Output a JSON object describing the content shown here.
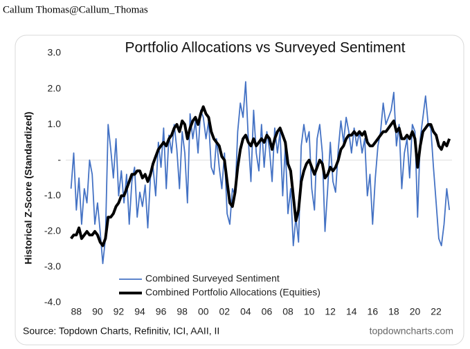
{
  "header": {
    "author": "Callum Thomas@Callum_Thomas"
  },
  "chart_data": {
    "type": "line",
    "title": "Portfolio Allocations vs Surveyed Sentiment",
    "y_label": "Historical Z-Score (Standardized)",
    "source": "Source: Topdown Charts, Refinitiv, ICI, AAII, II",
    "watermark": "topdowncharts.com",
    "x": [
      1987.5,
      1987.75,
      1988,
      1988.25,
      1988.5,
      1988.75,
      1989,
      1989.25,
      1989.5,
      1989.75,
      1990,
      1990.25,
      1990.5,
      1990.75,
      1991,
      1991.25,
      1991.5,
      1991.75,
      1992,
      1992.25,
      1992.5,
      1992.75,
      1993,
      1993.25,
      1993.5,
      1993.75,
      1994,
      1994.25,
      1994.5,
      1994.75,
      1995,
      1995.25,
      1995.5,
      1995.75,
      1996,
      1996.25,
      1996.5,
      1996.75,
      1997,
      1997.25,
      1997.5,
      1997.75,
      1998,
      1998.25,
      1998.5,
      1998.75,
      1999,
      1999.25,
      1999.5,
      1999.75,
      2000,
      2000.25,
      2000.5,
      2000.75,
      2001,
      2001.25,
      2001.5,
      2001.75,
      2002,
      2002.25,
      2002.5,
      2002.75,
      2003,
      2003.25,
      2003.5,
      2003.75,
      2004,
      2004.25,
      2004.5,
      2004.75,
      2005,
      2005.25,
      2005.5,
      2005.75,
      2006,
      2006.25,
      2006.5,
      2006.75,
      2007,
      2007.25,
      2007.5,
      2007.75,
      2008,
      2008.25,
      2008.5,
      2008.75,
      2009,
      2009.25,
      2009.5,
      2009.75,
      2010,
      2010.25,
      2010.5,
      2010.75,
      2011,
      2011.25,
      2011.5,
      2011.75,
      2012,
      2012.25,
      2012.5,
      2012.75,
      2013,
      2013.25,
      2013.5,
      2013.75,
      2014,
      2014.25,
      2014.5,
      2014.75,
      2015,
      2015.25,
      2015.5,
      2015.75,
      2016,
      2016.25,
      2016.5,
      2016.75,
      2017,
      2017.25,
      2017.5,
      2017.75,
      2018,
      2018.25,
      2018.5,
      2018.75,
      2019,
      2019.25,
      2019.5,
      2019.75,
      2020,
      2020.25,
      2020.5,
      2020.75,
      2021,
      2021.25,
      2021.5,
      2021.75,
      2022,
      2022.25,
      2022.5,
      2022.75,
      2023,
      2023.25
    ],
    "series": [
      {
        "name": "Combined Surveyed Sentiment",
        "color": "#4472c4",
        "width": 1.8,
        "values": [
          -0.8,
          0.2,
          -1.4,
          -0.5,
          -1.8,
          -0.8,
          -1.2,
          0.0,
          -0.4,
          -1.8,
          -1.2,
          -2.0,
          -2.9,
          -2.2,
          1.0,
          0.3,
          -0.5,
          0.6,
          -1.0,
          -0.3,
          -1.2,
          -0.4,
          -1.8,
          -0.6,
          -0.2,
          -1.6,
          -0.9,
          -1.3,
          -0.7,
          -1.9,
          -0.5,
          -0.2,
          -1.0,
          0.5,
          -0.2,
          0.9,
          -0.8,
          0.7,
          0.2,
          1.0,
          0.3,
          -0.8,
          0.8,
          0.2,
          -1.2,
          1.3,
          0.6,
          1.1,
          0.2,
          1.4,
          1.2,
          0.6,
          1.1,
          -0.2,
          -0.4,
          0.6,
          -0.2,
          -0.8,
          0.2,
          -1.5,
          -1.8,
          -0.8,
          -1.0,
          0.8,
          1.6,
          1.2,
          2.2,
          0.6,
          -0.6,
          1.4,
          0.2,
          -0.3,
          1.0,
          -0.2,
          0.8,
          0.3,
          -0.6,
          0.9,
          0.2,
          0.8,
          -1.0,
          0.4,
          -1.5,
          -0.8,
          -2.4,
          -1.6,
          -2.3,
          0.4,
          1.0,
          0.5,
          0.8,
          -0.8,
          -1.4,
          0.6,
          1.0,
          0.2,
          -2.0,
          -0.8,
          0.5,
          -0.6,
          -0.9,
          0.3,
          1.1,
          0.5,
          1.2,
          0.8,
          0.2,
          0.9,
          0.4,
          0.8,
          0.2,
          0.6,
          -1.0,
          -0.4,
          -1.8,
          -0.5,
          0.4,
          0.8,
          1.6,
          1.0,
          1.2,
          1.4,
          1.9,
          0.4,
          1.0,
          -0.8,
          0.2,
          0.6,
          -0.5,
          1.0,
          0.8,
          -1.6,
          0.6,
          1.2,
          1.8,
          1.0,
          0.9,
          -0.2,
          -1.2,
          -2.2,
          -2.4,
          -1.8,
          -0.8,
          -1.4
        ]
      },
      {
        "name": "Combined Portfolio Allocations (Equities)",
        "color": "#000000",
        "width": 4,
        "values": [
          -2.2,
          -2.1,
          -2.1,
          -1.9,
          -2.2,
          -2.1,
          -2.0,
          -2.1,
          -2.1,
          -2.0,
          -2.1,
          -2.3,
          -2.4,
          -2.2,
          -1.6,
          -1.6,
          -1.5,
          -1.3,
          -1.2,
          -1.0,
          -1.0,
          -0.8,
          -0.6,
          -0.4,
          -0.4,
          -0.3,
          -0.3,
          -0.5,
          -0.4,
          -0.6,
          -0.4,
          -0.1,
          0.1,
          0.3,
          0.4,
          0.5,
          0.4,
          0.6,
          0.7,
          0.9,
          1.0,
          0.8,
          1.1,
          1.0,
          0.6,
          0.9,
          1.1,
          1.2,
          1.0,
          1.3,
          1.5,
          1.3,
          1.2,
          0.8,
          0.6,
          0.5,
          0.4,
          0.1,
          0.0,
          -0.6,
          -1.2,
          -1.3,
          -0.9,
          -0.2,
          0.3,
          0.6,
          0.7,
          0.5,
          0.4,
          0.6,
          0.4,
          0.5,
          0.6,
          0.5,
          0.7,
          0.6,
          0.3,
          0.6,
          0.8,
          0.9,
          0.7,
          0.5,
          -0.1,
          -0.3,
          -1.0,
          -1.7,
          -1.4,
          -0.6,
          -0.3,
          -0.1,
          0.0,
          -0.2,
          -0.4,
          -0.2,
          0.0,
          -0.1,
          -0.5,
          -0.4,
          -0.2,
          -0.3,
          -0.2,
          0.0,
          0.3,
          0.4,
          0.6,
          0.7,
          0.7,
          0.8,
          0.7,
          0.8,
          0.7,
          0.8,
          0.5,
          0.4,
          0.4,
          0.5,
          0.6,
          0.7,
          0.8,
          0.8,
          0.9,
          1.0,
          1.1,
          0.8,
          0.9,
          0.6,
          0.6,
          0.7,
          0.6,
          0.8,
          0.6,
          -0.2,
          0.4,
          0.8,
          0.9,
          1.0,
          1.0,
          0.8,
          0.7,
          0.4,
          0.3,
          0.5,
          0.4,
          0.6
        ]
      }
    ],
    "xlim": [
      1987,
      2023.5
    ],
    "xticks": [
      {
        "value": 1988,
        "label": "88"
      },
      {
        "value": 1990,
        "label": "90"
      },
      {
        "value": 1992,
        "label": "92"
      },
      {
        "value": 1994,
        "label": "94"
      },
      {
        "value": 1996,
        "label": "96"
      },
      {
        "value": 1998,
        "label": "98"
      },
      {
        "value": 2000,
        "label": "00"
      },
      {
        "value": 2002,
        "label": "02"
      },
      {
        "value": 2004,
        "label": "04"
      },
      {
        "value": 2006,
        "label": "06"
      },
      {
        "value": 2008,
        "label": "08"
      },
      {
        "value": 2010,
        "label": "10"
      },
      {
        "value": 2012,
        "label": "12"
      },
      {
        "value": 2014,
        "label": "14"
      },
      {
        "value": 2016,
        "label": "16"
      },
      {
        "value": 2018,
        "label": "18"
      },
      {
        "value": 2020,
        "label": "20"
      },
      {
        "value": 2022,
        "label": "22"
      }
    ],
    "ylim": [
      -4,
      3
    ],
    "yticks": [
      {
        "value": 3,
        "label": "3.0"
      },
      {
        "value": 2,
        "label": "2.0"
      },
      {
        "value": 1,
        "label": "1.0"
      },
      {
        "value": 0,
        "label": "-"
      },
      {
        "value": -1,
        "label": "-1.0"
      },
      {
        "value": -2,
        "label": "-2.0"
      },
      {
        "value": -3,
        "label": "-3.0"
      },
      {
        "value": -4,
        "label": "-4.0"
      }
    ],
    "zero_line": true,
    "legend": "lower left"
  }
}
